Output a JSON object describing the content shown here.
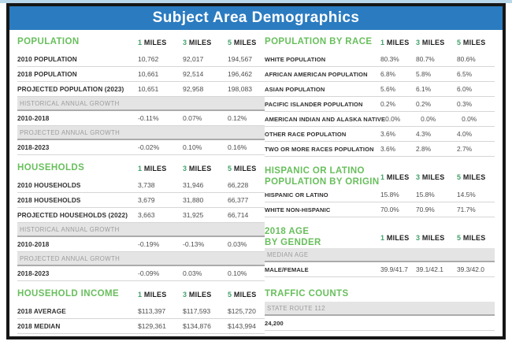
{
  "title": "Subject Area Demographics",
  "colors": {
    "title_bar": "#2b7bc0",
    "accent_green": "#68bf5c",
    "mile_number": "#43a06b",
    "subsection_bg": "#e4e4e4",
    "subsection_text": "#9c9c9c",
    "top_strip": "#b9d7ea"
  },
  "tables": [
    {
      "id": "population",
      "side": "left",
      "heading_lines": [
        "POPULATION"
      ],
      "cols": [
        "1 MILES",
        "3 MILES",
        "5 MILES"
      ],
      "rows": [
        {
          "label": "2010 POPULATION",
          "values": [
            "10,762",
            "92,017",
            "194,567"
          ]
        },
        {
          "label": "2018 POPULATION",
          "values": [
            "10,661",
            "92,514",
            "196,462"
          ]
        },
        {
          "label": "PROJECTED POPULATION (2023)",
          "values": [
            "10,651",
            "92,958",
            "198,083"
          ]
        },
        {
          "section": true,
          "label": "HISTORICAL ANNUAL GROWTH"
        },
        {
          "label": "2010-2018",
          "values": [
            "-0.11%",
            "0.07%",
            "0.12%"
          ]
        },
        {
          "section": true,
          "label": "PROJECTED ANNUAL GROWTH"
        },
        {
          "label": "2018-2023",
          "values": [
            "-0.02%",
            "0.10%",
            "0.16%"
          ]
        }
      ]
    },
    {
      "id": "households",
      "side": "left",
      "heading_lines": [
        "HOUSEHOLDS"
      ],
      "cols": [
        "1 MILES",
        "3 MILES",
        "5 MILES"
      ],
      "rows": [
        {
          "label": "2010 HOUSEHOLDS",
          "values": [
            "3,738",
            "31,946",
            "66,228"
          ]
        },
        {
          "label": "2018 HOUSEHOLDS",
          "values": [
            "3,679",
            "31,880",
            "66,377"
          ]
        },
        {
          "label": "PROJECTED HOUSEHOLDS (2022)",
          "values": [
            "3,663",
            "31,925",
            "66,714"
          ]
        },
        {
          "section": true,
          "label": "HISTORICAL ANNUAL GROWTH"
        },
        {
          "label": "2010-2018",
          "values": [
            "-0.19%",
            "-0.13%",
            "0.03%"
          ]
        },
        {
          "section": true,
          "label": "PROJECTED ANNUAL GROWTH"
        },
        {
          "label": "2018-2023",
          "values": [
            "-0.09%",
            "0.03%",
            "0.10%"
          ]
        }
      ]
    },
    {
      "id": "household-income",
      "side": "left",
      "heading_lines": [
        "HOUSEHOLD INCOME"
      ],
      "cols": [
        "1 MILES",
        "3 MILES",
        "5 MILES"
      ],
      "rows": [
        {
          "label": "2018 AVERAGE",
          "values": [
            "$113,397",
            "$117,593",
            "$125,720"
          ]
        },
        {
          "label": "2018 MEDIAN",
          "values": [
            "$129,361",
            "$134,876",
            "$143,994"
          ]
        }
      ]
    },
    {
      "id": "population-by-race",
      "side": "right",
      "heading_lines": [
        "POPULATION BY RACE"
      ],
      "cols": [
        "1 MILES",
        "3 MILES",
        "5 MILES"
      ],
      "rows": [
        {
          "label": "WHITE POPULATION",
          "values": [
            "80.3%",
            "80.7%",
            "80.6%"
          ]
        },
        {
          "label": "AFRICAN AMERICAN POPULATION",
          "values": [
            "6.8%",
            "5.8%",
            "6.5%"
          ]
        },
        {
          "label": "ASIAN POPULATION",
          "values": [
            "5.6%",
            "6.1%",
            "6.0%"
          ]
        },
        {
          "label": "PACIFIC ISLANDER POPULATION",
          "values": [
            "0.2%",
            "0.2%",
            "0.3%"
          ]
        },
        {
          "label": "AMERICAN INDIAN AND ALASKA NATIVE",
          "values": [
            "0.0%",
            "0.0%",
            "0.0%"
          ]
        },
        {
          "label": "OTHER RACE POPULATION",
          "values": [
            "3.6%",
            "4.3%",
            "4.0%"
          ]
        },
        {
          "label": "TWO OR MORE RACES POPULATION",
          "values": [
            "3.6%",
            "2.8%",
            "2.7%"
          ]
        }
      ]
    },
    {
      "id": "hispanic-or-latino-population-by-origin",
      "side": "right",
      "heading_lines": [
        "HISPANIC OR LATINO",
        "POPULATION BY ORIGIN"
      ],
      "cols": [
        "1 MILES",
        "3 MILES",
        "5 MILES"
      ],
      "rows": [
        {
          "label": "HISPANIC OR LATINO",
          "values": [
            "15.8%",
            "15.8%",
            "14.5%"
          ]
        },
        {
          "label": "WHITE NON-HISPANIC",
          "values": [
            "70.0%",
            "70.9%",
            "71.7%"
          ]
        }
      ]
    },
    {
      "id": "2018-age-by-gender",
      "side": "right",
      "heading_lines": [
        "2018 AGE",
        "BY GENDER"
      ],
      "cols": [
        "1 MILES",
        "3 MILES",
        "5 MILES"
      ],
      "rows": [
        {
          "section": true,
          "label": "MEDIAN AGE"
        },
        {
          "label": "MALE/FEMALE",
          "values": [
            "39.9/41.7",
            "39.1/42.1",
            "39.3/42.0"
          ]
        }
      ]
    },
    {
      "id": "traffic-counts",
      "side": "right",
      "heading_lines": [
        "TRAFFIC COUNTS"
      ],
      "cols": [],
      "rows": [
        {
          "section": true,
          "label": "STATE ROUTE 112"
        },
        {
          "label": "24,200",
          "values": []
        }
      ]
    }
  ]
}
